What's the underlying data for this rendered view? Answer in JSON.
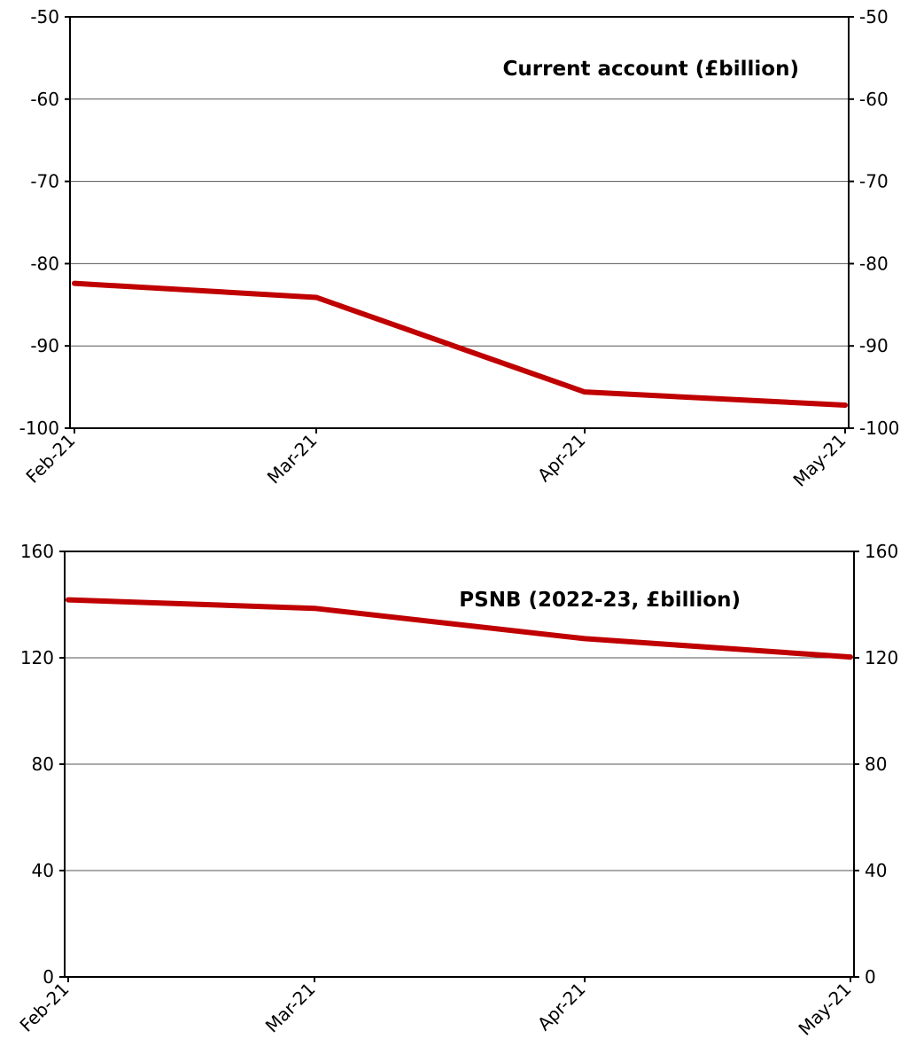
{
  "chart_data": [
    {
      "type": "line",
      "title": "Current account (£billion)",
      "categories": [
        "Feb-21",
        "Mar-21",
        "Apr-21",
        "May-21"
      ],
      "series": [
        {
          "values": [
            -82.4,
            -84.1,
            -95.6,
            -97.2
          ]
        }
      ],
      "ylim": [
        -100,
        -50
      ],
      "yticks": [
        -100,
        -90,
        -80,
        -70,
        -60,
        -50
      ],
      "grid": true,
      "y_axis_both_sides": true,
      "line_color": "#c00000"
    },
    {
      "type": "line",
      "title": "PSNB (2022-23, £billion)",
      "categories": [
        "Feb-21",
        "Mar-21",
        "Apr-21",
        "May-21"
      ],
      "series": [
        {
          "values": [
            141.8,
            138.6,
            127.2,
            120.3
          ]
        }
      ],
      "ylim": [
        0,
        160
      ],
      "yticks": [
        0,
        40,
        80,
        120,
        160
      ],
      "grid": true,
      "y_axis_both_sides": true,
      "line_color": "#c00000"
    }
  ]
}
